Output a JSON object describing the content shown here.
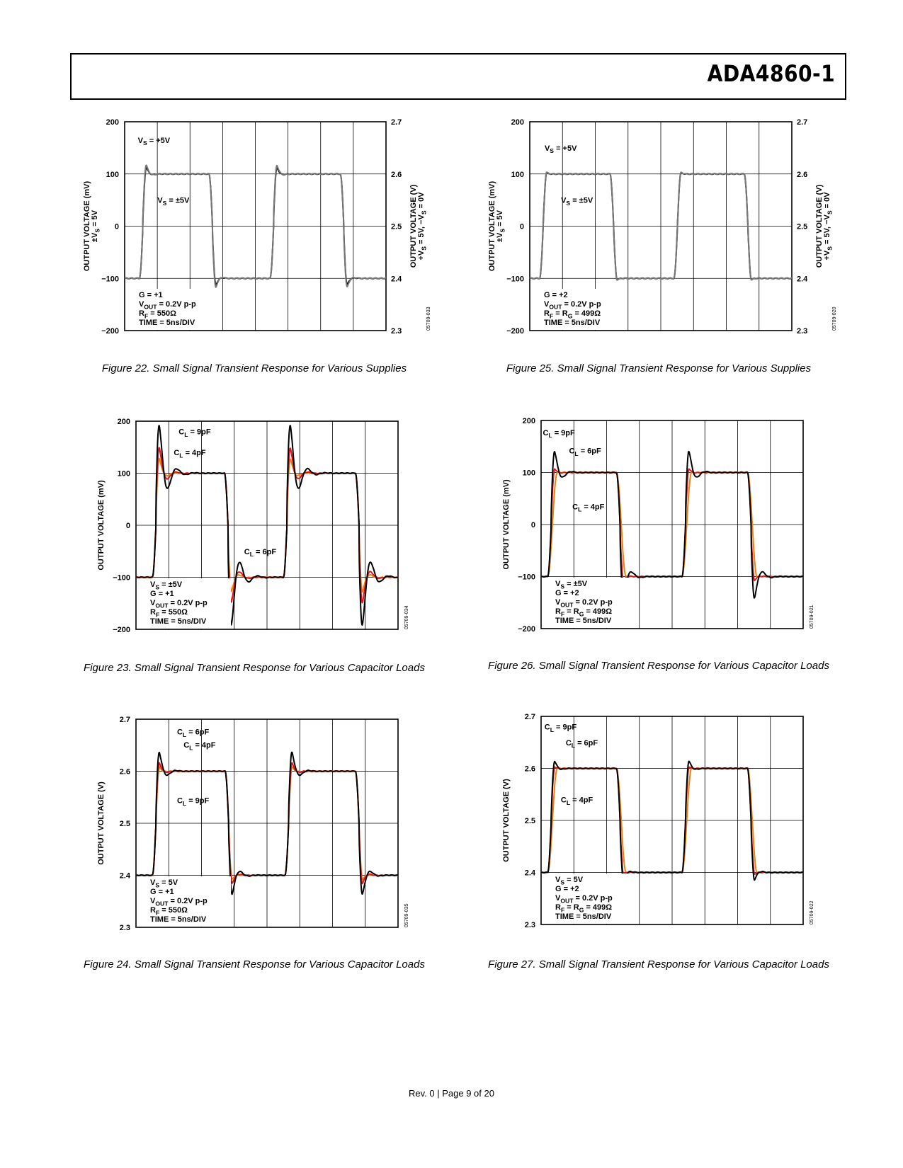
{
  "header": {
    "part_number": "ADA4860-1"
  },
  "footer": {
    "text": "Rev. 0 | Page 9 of 20"
  },
  "colors": {
    "black": "#000000",
    "grey": "#777777",
    "red": "#e0141e",
    "orange": "#f07f10"
  },
  "figures": [
    {
      "caption": "Figure 22. Small Signal Transient Response for Various Supplies",
      "code": "05709-033",
      "chart_data": {
        "type": "line",
        "ylabel_lines": [
          "OUTPUT VOLTAGE (mV)",
          "±VS = 5V"
        ],
        "y_ticks": [
          "200",
          "100",
          "0",
          "−100",
          "−200"
        ],
        "ylim": [
          -200,
          200
        ],
        "y2label_lines": [
          "OUTPUT VOLTAGE (V)",
          "+VS = 5V, −VS = 0V"
        ],
        "y2_ticks": [
          "2.7",
          "2.6",
          "2.5",
          "2.4",
          "2.3"
        ],
        "y2lim": [
          2.3,
          2.7
        ],
        "x_divisions": 8,
        "time_per_div_ns": 5,
        "edges_div": [
          0.45,
          2.58,
          4.45,
          6.6
        ],
        "series": [
          {
            "name": "VS = +5V",
            "color": "#777777",
            "overshoot": 0.25,
            "ringing": 0.06
          },
          {
            "name": "VS = ±5V",
            "color": "#000000",
            "overshoot": 0.2,
            "ringing": 0.05
          }
        ],
        "annotations": [
          {
            "text": "VS = +5V",
            "at": [
              0.1,
              165
            ]
          },
          {
            "text": "VS = ±5V",
            "at": [
              0.7,
              50
            ]
          }
        ],
        "conditions": [
          "G = +1",
          "VOUT = 0.2V p-p",
          "RF = 550Ω",
          "TIME = 5ns/DIV"
        ]
      }
    },
    {
      "caption": "Figure 25. Small Signal Transient Response for Various Supplies",
      "code": "05709-020",
      "chart_data": {
        "type": "line",
        "ylabel_lines": [
          "OUTPUT VOLTAGE (mV)",
          "±VS = 5V"
        ],
        "y_ticks": [
          "200",
          "100",
          "0",
          "−100",
          "−200"
        ],
        "ylim": [
          -200,
          200
        ],
        "y2label_lines": [
          "OUTPUT VOLTAGE (V)",
          "+VS = 5V, −VS = 0V"
        ],
        "y2_ticks": [
          "2.7",
          "2.6",
          "2.5",
          "2.4",
          "2.3"
        ],
        "y2lim": [
          2.3,
          2.7
        ],
        "x_divisions": 8,
        "time_per_div_ns": 5,
        "edges_div": [
          0.3,
          2.45,
          4.4,
          6.55
        ],
        "series": [
          {
            "name": "VS = +5V",
            "color": "#777777",
            "overshoot": 0.06,
            "ringing": 0.02
          },
          {
            "name": "VS = ±5V",
            "color": "#000000",
            "overshoot": 0.05,
            "ringing": 0.02
          }
        ],
        "annotations": [
          {
            "text": "VS = +5V",
            "at": [
              0.15,
              150
            ]
          },
          {
            "text": "VS = ±5V",
            "at": [
              0.65,
              50
            ]
          }
        ],
        "conditions": [
          "G = +2",
          "VOUT = 0.2V p-p",
          "RF = RG = 499Ω",
          "TIME = 5ns/DIV"
        ]
      }
    },
    {
      "caption": "Figure 23. Small Signal Transient Response for Various Capacitor Loads",
      "code": "05709-034",
      "chart_data": {
        "type": "line",
        "ylabel_lines": [
          "OUTPUT VOLTAGE (mV)"
        ],
        "y_ticks": [
          "200",
          "100",
          "0",
          "−100",
          "−200"
        ],
        "ylim": [
          -200,
          200
        ],
        "x_divisions": 8,
        "time_per_div_ns": 5,
        "edges_div": [
          0.5,
          2.7,
          4.5,
          6.7
        ],
        "series": [
          {
            "name": "CL = 9pF",
            "color": "#000000",
            "overshoot": 0.72,
            "ringing": 0.35
          },
          {
            "name": "CL = 6pF",
            "color": "#e0141e",
            "overshoot": 0.45,
            "ringing": 0.22
          },
          {
            "name": "CL = 4pF",
            "color": "#f07f10",
            "overshoot": 0.3,
            "ringing": 0.15
          }
        ],
        "annotations": [
          {
            "text": "CL = 9pF",
            "at": [
              1.0,
              180
            ]
          },
          {
            "text": "CL = 4pF",
            "at": [
              0.85,
              140
            ]
          },
          {
            "text": "CL = 6pF",
            "at": [
              3.0,
              -50
            ]
          }
        ],
        "conditions": [
          "VS = ±5V",
          "G = +1",
          "VOUT = 0.2V p-p",
          "RF = 550Ω",
          "TIME = 5ns/DIV"
        ]
      }
    },
    {
      "caption": "Figure 26. Small Signal Transient Response for Various Capacitor Loads",
      "code": "05709-021",
      "chart_data": {
        "type": "line",
        "ylabel_lines": [
          "OUTPUT VOLTAGE (mV)"
        ],
        "y_ticks": [
          "200",
          "100",
          "0",
          "−100",
          "−200"
        ],
        "ylim": [
          -200,
          200
        ],
        "x_divisions": 8,
        "time_per_div_ns": 5,
        "edges_div": [
          0.2,
          2.3,
          4.3,
          6.3
        ],
        "series": [
          {
            "name": "CL = 9pF",
            "color": "#000000",
            "overshoot": 0.38,
            "ringing": 0.22
          },
          {
            "name": "CL = 6pF",
            "color": "#e0141e",
            "overshoot": 0.12,
            "ringing": 0.05
          },
          {
            "name": "CL = 4pF",
            "color": "#f07f10",
            "overshoot": 0.0,
            "ringing": 0.0
          }
        ],
        "annotations": [
          {
            "text": "CL = 9pF",
            "at": [
              -0.25,
              177
            ]
          },
          {
            "text": "CL = 6pF",
            "at": [
              0.55,
              142
            ]
          },
          {
            "text": "CL = 4pF",
            "at": [
              0.65,
              35
            ]
          }
        ],
        "conditions": [
          "VS = ±5V",
          "G = +2",
          "VOUT = 0.2V p-p",
          "RF = RG = 499Ω",
          "TIME = 5ns/DIV"
        ]
      }
    },
    {
      "caption": "Figure 24. Small Signal Transient Response for Various Capacitor Loads",
      "code": "05709-035",
      "chart_data": {
        "type": "line",
        "ylabel_lines": [
          "OUTPUT VOLTAGE (V)"
        ],
        "y_ticks": [
          "2.7",
          "2.6",
          "2.5",
          "2.4",
          "2.3"
        ],
        "ylim": [
          2.3,
          2.7
        ],
        "x_divisions": 8,
        "time_per_div_ns": 5,
        "edges_div": [
          0.5,
          2.72,
          4.55,
          6.7
        ],
        "series": [
          {
            "name": "CL = 9pF",
            "color": "#000000",
            "overshoot": 0.35,
            "ringing": 0.2
          },
          {
            "name": "CL = 6pF",
            "color": "#e0141e",
            "overshoot": 0.2,
            "ringing": 0.1
          },
          {
            "name": "CL = 4pF",
            "color": "#f07f10",
            "overshoot": 0.12,
            "ringing": 0.06
          }
        ],
        "annotations": [
          {
            "text": "CL = 6pF",
            "at": [
              0.95,
              2.676
            ]
          },
          {
            "text": "CL = 4pF",
            "at": [
              1.15,
              2.651
            ]
          },
          {
            "text": "CL = 9pF",
            "at": [
              0.95,
              2.544
            ]
          }
        ],
        "conditions": [
          "VS = 5V",
          "G = +1",
          "VOUT = 0.2V p-p",
          "RF = 550Ω",
          "TIME = 5ns/DIV"
        ]
      }
    },
    {
      "caption": "Figure 27. Small Signal Transient Response for Various Capacitor Loads",
      "code": "05709-022",
      "chart_data": {
        "type": "line",
        "ylabel_lines": [
          "OUTPUT VOLTAGE (V)"
        ],
        "y_ticks": [
          "2.7",
          "2.6",
          "2.5",
          "2.4",
          "2.3"
        ],
        "ylim": [
          2.3,
          2.7
        ],
        "x_divisions": 8,
        "time_per_div_ns": 5,
        "edges_div": [
          0.2,
          2.3,
          4.3,
          6.3
        ],
        "series": [
          {
            "name": "CL = 9pF",
            "color": "#000000",
            "overshoot": 0.18,
            "ringing": 0.1
          },
          {
            "name": "CL = 6pF",
            "color": "#e0141e",
            "overshoot": 0.06,
            "ringing": 0.03
          },
          {
            "name": "CL = 4pF",
            "color": "#f07f10",
            "overshoot": 0.0,
            "ringing": 0.0
          }
        ],
        "annotations": [
          {
            "text": "CL = 9pF",
            "at": [
              -0.2,
              2.68
            ]
          },
          {
            "text": "CL = 6pF",
            "at": [
              0.45,
              2.65
            ]
          },
          {
            "text": "CL = 4pF",
            "at": [
              0.3,
              2.54
            ]
          }
        ],
        "conditions": [
          "VS = 5V",
          "G = +2",
          "VOUT = 0.2V p-p",
          "RF = RG = 499Ω",
          "TIME = 5ns/DIV"
        ]
      }
    }
  ]
}
